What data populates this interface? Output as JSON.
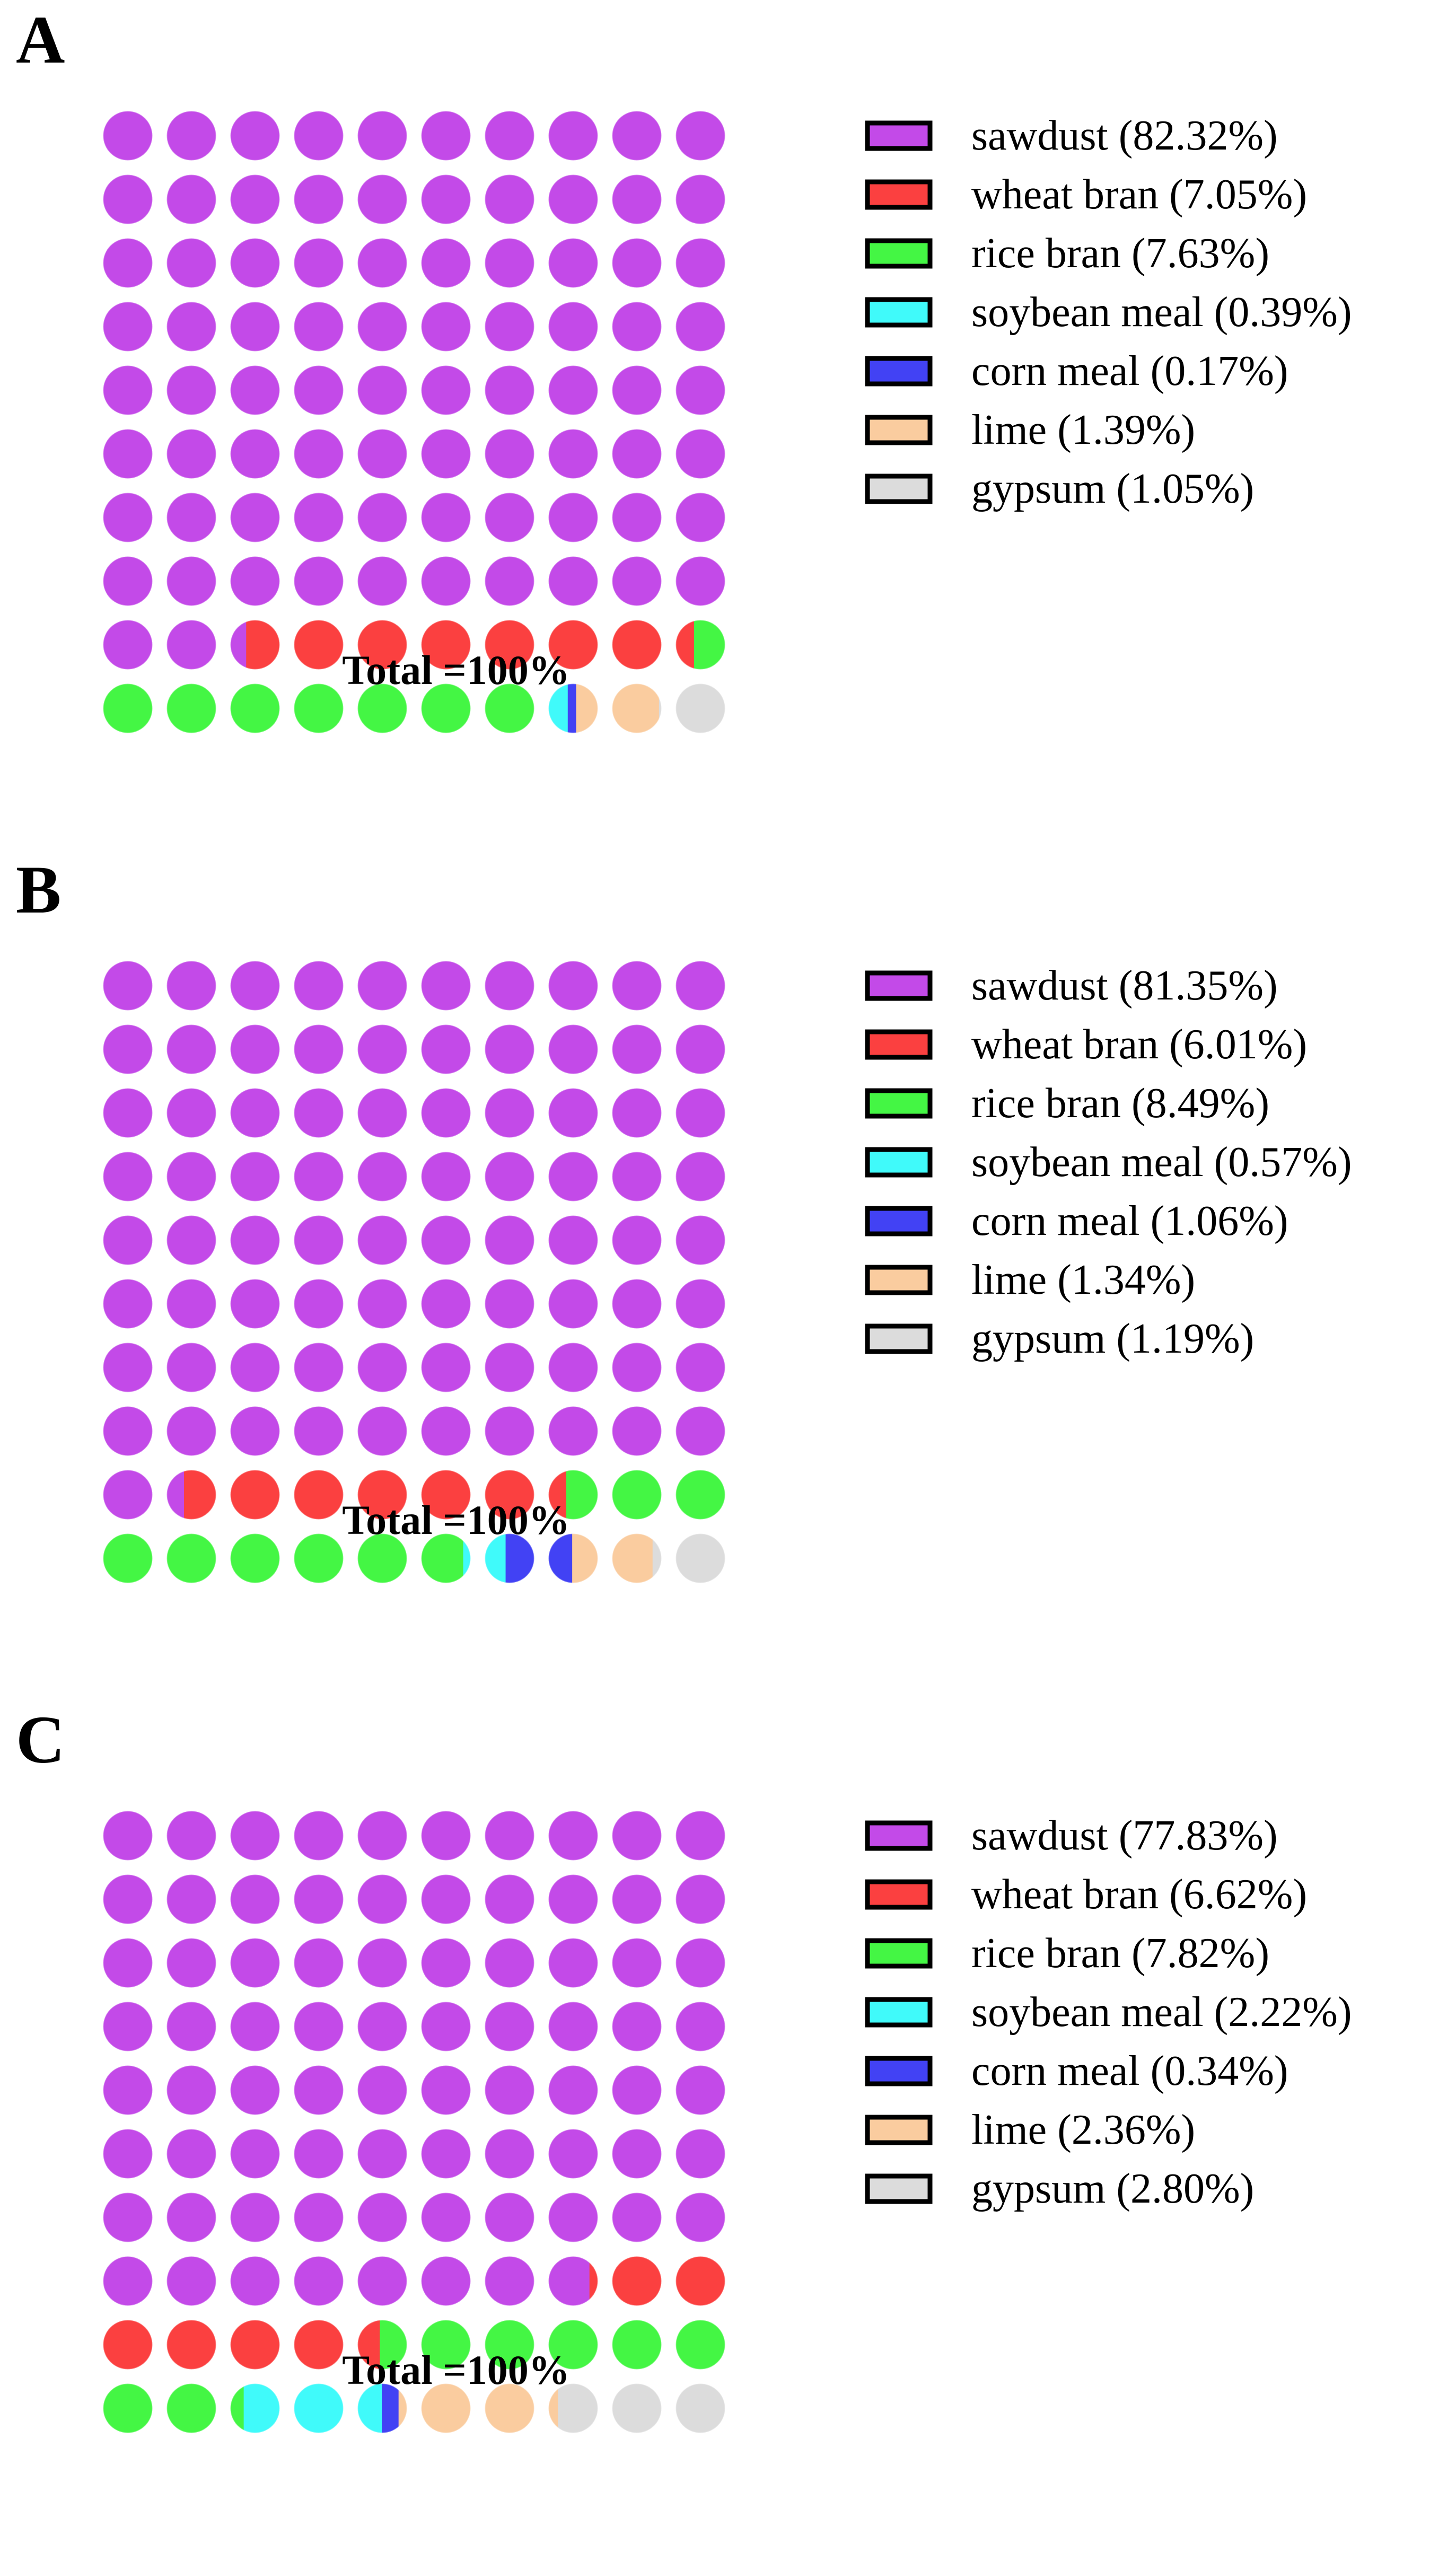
{
  "chart_data": [
    {
      "type": "waffle",
      "panel_label": "A",
      "total_label": "Total =100%",
      "series": [
        {
          "name": "sawdust",
          "value": 82.32,
          "label": "sawdust (82.32%)",
          "color": "#c34ae8"
        },
        {
          "name": "wheat bran",
          "value": 7.05,
          "label": "wheat bran (7.05%)",
          "color": "#fb4040"
        },
        {
          "name": "rice bran",
          "value": 7.63,
          "label": "rice bran (7.63%)",
          "color": "#44f644"
        },
        {
          "name": "soybean meal",
          "value": 0.39,
          "label": "soybean meal (0.39%)",
          "color": "#40fafa"
        },
        {
          "name": "corn meal",
          "value": 0.17,
          "label": "corn meal (0.17%)",
          "color": "#4242f4"
        },
        {
          "name": "lime",
          "value": 1.39,
          "label": "lime (1.39%)",
          "color": "#facc9f"
        },
        {
          "name": "gypsum",
          "value": 1.05,
          "label": "gypsum (1.05%)",
          "color": "#dcdcdc"
        }
      ]
    },
    {
      "type": "waffle",
      "panel_label": "B",
      "total_label": "Total =100%",
      "series": [
        {
          "name": "sawdust",
          "value": 81.35,
          "label": "sawdust (81.35%)",
          "color": "#c34ae8"
        },
        {
          "name": "wheat bran",
          "value": 6.01,
          "label": "wheat bran (6.01%)",
          "color": "#fb4040"
        },
        {
          "name": "rice bran",
          "value": 8.49,
          "label": "rice bran (8.49%)",
          "color": "#44f644"
        },
        {
          "name": "soybean meal",
          "value": 0.57,
          "label": "soybean meal (0.57%)",
          "color": "#40fafa"
        },
        {
          "name": "corn meal",
          "value": 1.06,
          "label": "corn meal (1.06%)",
          "color": "#4242f4"
        },
        {
          "name": "lime",
          "value": 1.34,
          "label": "lime (1.34%)",
          "color": "#facc9f"
        },
        {
          "name": "gypsum",
          "value": 1.19,
          "label": "gypsum (1.19%)",
          "color": "#dcdcdc"
        }
      ]
    },
    {
      "type": "waffle",
      "panel_label": "C",
      "total_label": "Total =100%",
      "series": [
        {
          "name": "sawdust",
          "value": 77.83,
          "label": "sawdust (77.83%)",
          "color": "#c34ae8"
        },
        {
          "name": "wheat bran",
          "value": 6.62,
          "label": "wheat bran (6.62%)",
          "color": "#fb4040"
        },
        {
          "name": "rice bran",
          "value": 7.82,
          "label": "rice bran (7.82%)",
          "color": "#44f644"
        },
        {
          "name": "soybean meal",
          "value": 2.22,
          "label": "soybean meal (2.22%)",
          "color": "#40fafa"
        },
        {
          "name": "corn meal",
          "value": 0.34,
          "label": "corn meal (0.34%)",
          "color": "#4242f4"
        },
        {
          "name": "lime",
          "value": 2.36,
          "label": "lime (2.36%)",
          "color": "#facc9f"
        },
        {
          "name": "gypsum",
          "value": 2.8,
          "label": "gypsum (2.80%)",
          "color": "#dcdcdc"
        }
      ]
    }
  ]
}
